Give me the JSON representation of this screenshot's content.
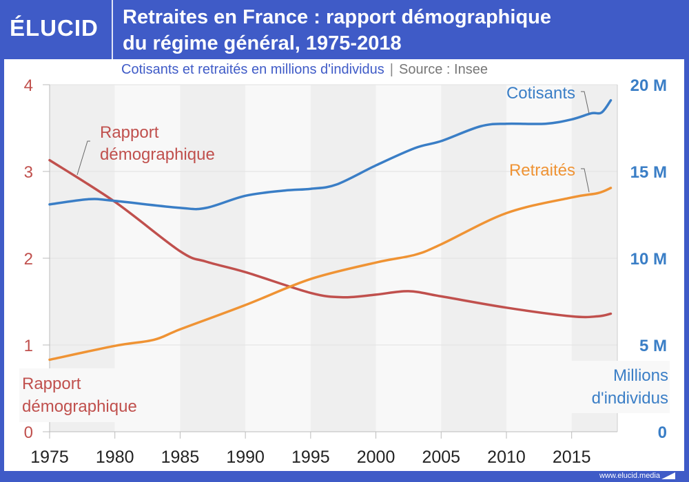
{
  "header": {
    "logo": "ÉLUCID",
    "title_line1": "Retraites en France : rapport démographique",
    "title_line2": "du régime général, 1975-2018",
    "subtitle": "Cotisants et retraités en millions d'individus",
    "separator": "|",
    "source": "Source : Insee"
  },
  "footer": {
    "url": "www.elucid.media"
  },
  "colors": {
    "brand": "#3f5bc7",
    "rapport": "#c0504d",
    "cotisants": "#3a7ec6",
    "retraites": "#ef9334",
    "axis_text": "#222222"
  },
  "chart_data": {
    "type": "line",
    "title": "Retraites en France : rapport démographique du régime général, 1975-2018",
    "subtitle": "Cotisants et retraités en millions d'individus",
    "source": "Insee",
    "x_ticks": [
      "1975",
      "1980",
      "1985",
      "1990",
      "1995",
      "2000",
      "2005",
      "2010",
      "2015"
    ],
    "xlim": [
      1975,
      2018.5
    ],
    "left_axis": {
      "label_line1": "Rapport",
      "label_line2": "démographique",
      "ylim": [
        0,
        4
      ],
      "ticks": [
        "0",
        "1",
        "2",
        "3",
        "4"
      ]
    },
    "right_axis": {
      "label_line1": "Millions",
      "label_line2": "d'individus",
      "ylim": [
        0,
        20
      ],
      "ticks": [
        "0",
        "5 M",
        "10 M",
        "15 M",
        "20 M"
      ]
    },
    "grid": true,
    "series": [
      {
        "name": "Rapport démographique",
        "label_line1": "Rapport",
        "label_line2": "démographique",
        "axis": "left",
        "x": [
          1975,
          1980,
          1985,
          1987,
          1990,
          1995,
          1997.5,
          2000,
          2002.5,
          2005,
          2010,
          2015,
          2017,
          2018
        ],
        "values": [
          3.13,
          2.65,
          2.08,
          1.96,
          1.84,
          1.6,
          1.55,
          1.58,
          1.62,
          1.56,
          1.43,
          1.33,
          1.33,
          1.36
        ]
      },
      {
        "name": "Cotisants",
        "label_line1": "Cotisants",
        "axis": "right",
        "x": [
          1975,
          1978,
          1980,
          1985,
          1987,
          1990,
          1993,
          1995,
          1997,
          2000,
          2003,
          2005,
          2008,
          2010,
          2013,
          2015,
          2016.5,
          2017.3,
          2018
        ],
        "values": [
          13.1,
          13.4,
          13.3,
          12.9,
          12.9,
          13.6,
          13.9,
          14.0,
          14.25,
          15.35,
          16.35,
          16.75,
          17.6,
          17.75,
          17.75,
          18.0,
          18.35,
          18.4,
          19.1
        ]
      },
      {
        "name": "Retraités",
        "label_line1": "Retraités",
        "axis": "right",
        "x": [
          1975,
          1980,
          1983,
          1985,
          1990,
          1995,
          2000,
          2003,
          2005,
          2010,
          2015,
          2017,
          2018
        ],
        "values": [
          4.15,
          4.95,
          5.3,
          5.9,
          7.3,
          8.8,
          9.75,
          10.2,
          10.8,
          12.6,
          13.5,
          13.75,
          14.05
        ]
      }
    ]
  }
}
